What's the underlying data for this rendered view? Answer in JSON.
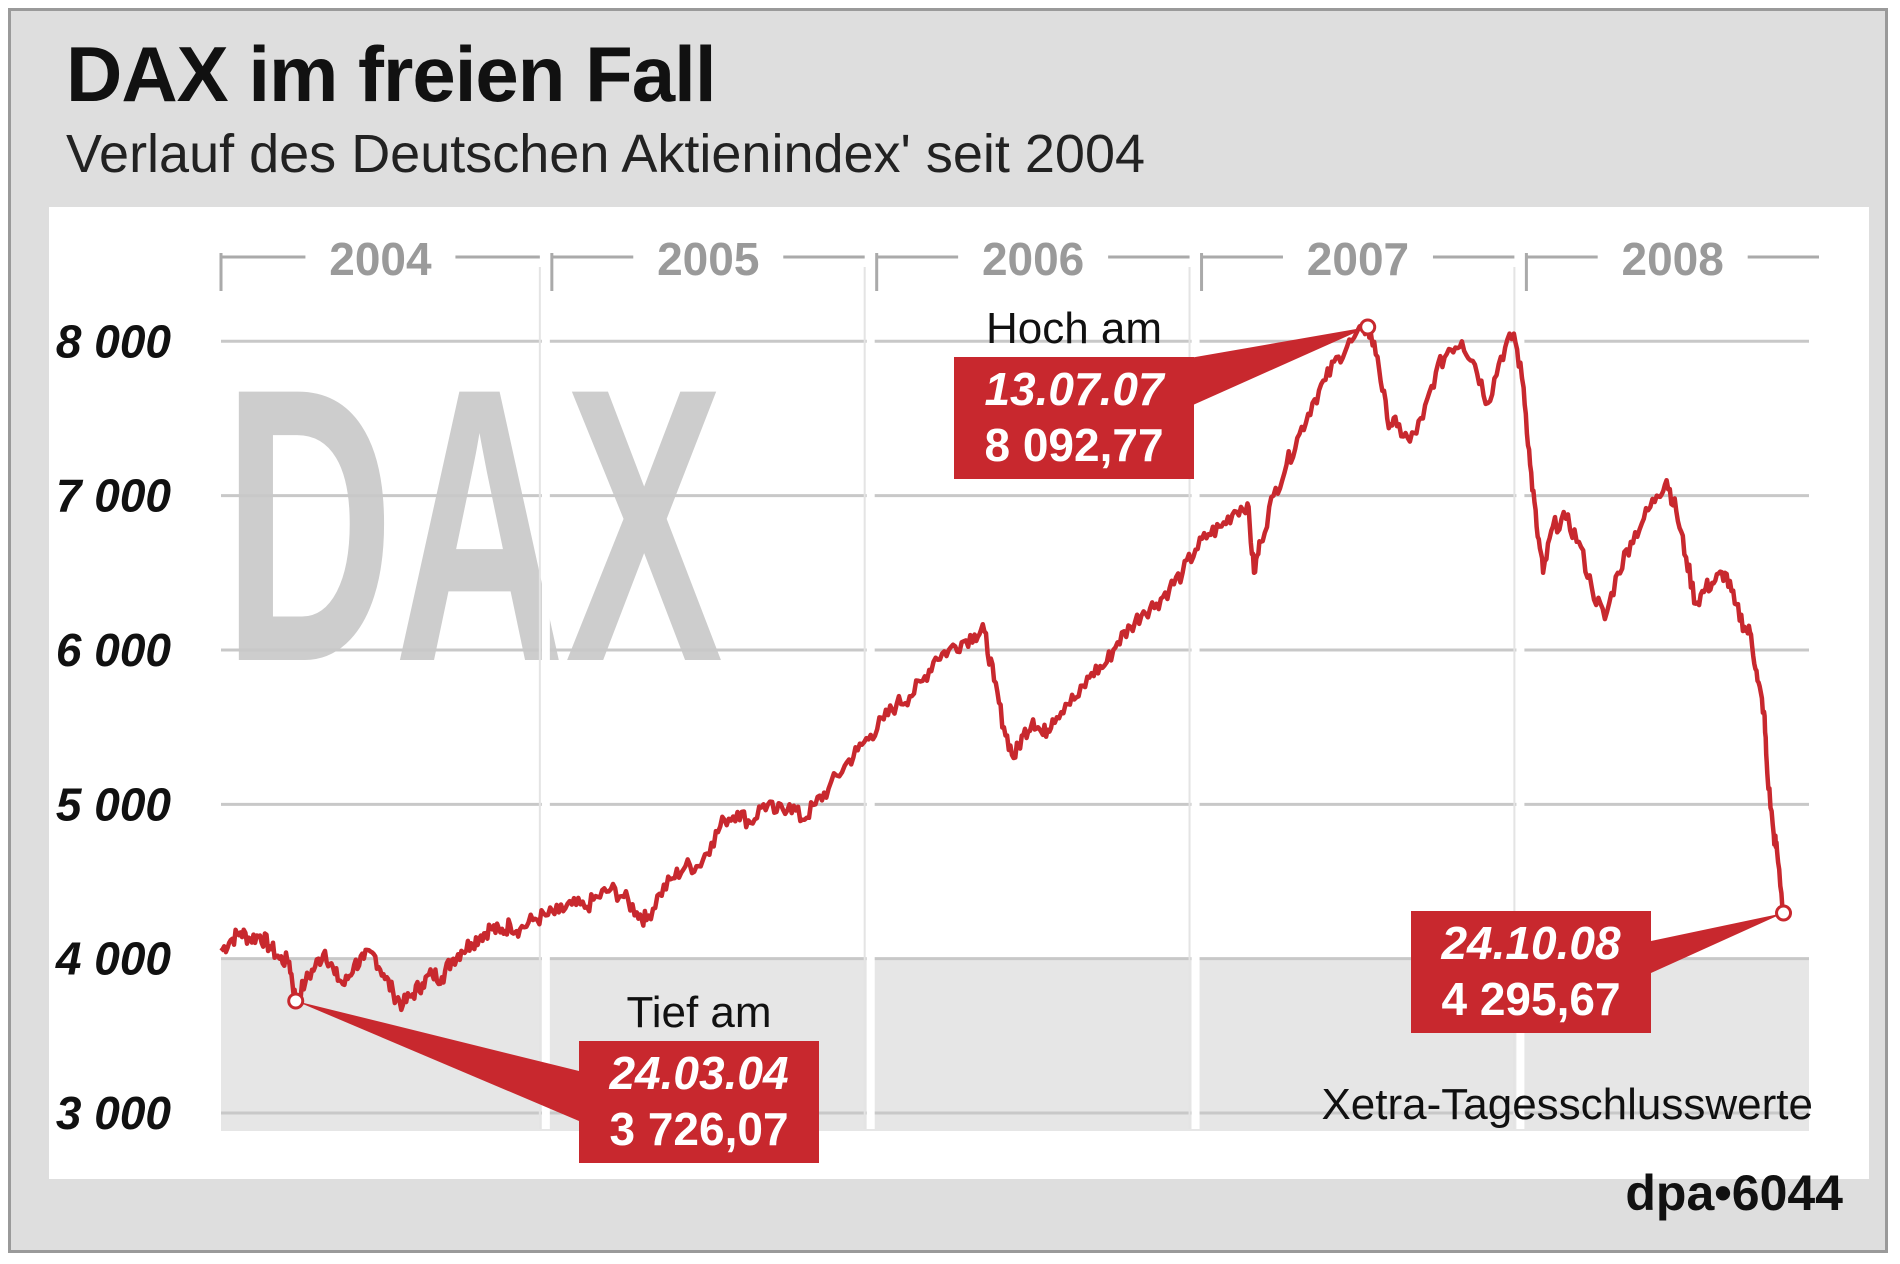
{
  "chart_data": {
    "type": "line",
    "title": "DAX im freien Fall",
    "subtitle": "Verlauf des Deutschen Aktienindex' seit 2004",
    "watermark": "DAX",
    "source_note": "Xetra-Tagesschlusswerte",
    "credit": "dpa•6044",
    "colors": {
      "line": "#c8282e",
      "label_box": "#c8282e",
      "grid": "#c8c8c8",
      "watermark": "#cdcdcd",
      "shade": "#e6e6e6"
    },
    "xlim": [
      2004.0,
      2008.95
    ],
    "ylim": [
      3000,
      8300
    ],
    "y_ticks": [
      3000,
      4000,
      5000,
      6000,
      7000,
      8000
    ],
    "y_tick_labels": [
      "3 000",
      "4 000",
      "5 000",
      "6 000",
      "7 000",
      "8 000"
    ],
    "year_labels": [
      "2004",
      "2005",
      "2006",
      "2007",
      "2008"
    ],
    "series": [
      {
        "values": [
          [
            2004.0,
            4050
          ],
          [
            2004.03,
            4120
          ],
          [
            2004.06,
            4170
          ],
          [
            2004.09,
            4130
          ],
          [
            2004.12,
            4150
          ],
          [
            2004.15,
            4080
          ],
          [
            2004.18,
            4000
          ],
          [
            2004.21,
            3980
          ],
          [
            2004.23,
            3726
          ],
          [
            2004.26,
            3850
          ],
          [
            2004.29,
            3950
          ],
          [
            2004.32,
            4050
          ],
          [
            2004.35,
            3900
          ],
          [
            2004.38,
            3830
          ],
          [
            2004.41,
            3960
          ],
          [
            2004.44,
            4000
          ],
          [
            2004.47,
            4030
          ],
          [
            2004.5,
            3900
          ],
          [
            2004.53,
            3780
          ],
          [
            2004.56,
            3700
          ],
          [
            2004.59,
            3770
          ],
          [
            2004.62,
            3840
          ],
          [
            2004.65,
            3900
          ],
          [
            2004.68,
            3880
          ],
          [
            2004.71,
            3990
          ],
          [
            2004.74,
            4050
          ],
          [
            2004.77,
            4100
          ],
          [
            2004.8,
            4150
          ],
          [
            2004.83,
            4200
          ],
          [
            2004.86,
            4170
          ],
          [
            2004.89,
            4220
          ],
          [
            2004.92,
            4190
          ],
          [
            2004.96,
            4250
          ],
          [
            2005.0,
            4280
          ],
          [
            2005.04,
            4300
          ],
          [
            2005.08,
            4350
          ],
          [
            2005.12,
            4330
          ],
          [
            2005.16,
            4400
          ],
          [
            2005.2,
            4450
          ],
          [
            2005.24,
            4400
          ],
          [
            2005.28,
            4300
          ],
          [
            2005.31,
            4250
          ],
          [
            2005.35,
            4420
          ],
          [
            2005.39,
            4520
          ],
          [
            2005.43,
            4600
          ],
          [
            2005.47,
            4600
          ],
          [
            2005.51,
            4750
          ],
          [
            2005.55,
            4900
          ],
          [
            2005.59,
            4950
          ],
          [
            2005.63,
            4880
          ],
          [
            2005.67,
            5000
          ],
          [
            2005.71,
            4950
          ],
          [
            2005.75,
            5000
          ],
          [
            2005.79,
            4900
          ],
          [
            2005.83,
            5000
          ],
          [
            2005.87,
            5100
          ],
          [
            2005.92,
            5250
          ],
          [
            2005.96,
            5350
          ],
          [
            2006.0,
            5450
          ],
          [
            2006.04,
            5550
          ],
          [
            2006.08,
            5650
          ],
          [
            2006.12,
            5700
          ],
          [
            2006.16,
            5800
          ],
          [
            2006.2,
            5950
          ],
          [
            2006.24,
            6000
          ],
          [
            2006.28,
            6050
          ],
          [
            2006.32,
            6100
          ],
          [
            2006.35,
            6120
          ],
          [
            2006.38,
            5800
          ],
          [
            2006.41,
            5500
          ],
          [
            2006.44,
            5300
          ],
          [
            2006.47,
            5450
          ],
          [
            2006.5,
            5550
          ],
          [
            2006.53,
            5450
          ],
          [
            2006.56,
            5550
          ],
          [
            2006.6,
            5650
          ],
          [
            2006.64,
            5700
          ],
          [
            2006.68,
            5850
          ],
          [
            2006.72,
            5900
          ],
          [
            2006.76,
            6050
          ],
          [
            2006.8,
            6150
          ],
          [
            2006.84,
            6250
          ],
          [
            2006.88,
            6300
          ],
          [
            2006.92,
            6400
          ],
          [
            2006.96,
            6500
          ],
          [
            2007.0,
            6650
          ],
          [
            2007.04,
            6750
          ],
          [
            2007.08,
            6800
          ],
          [
            2007.12,
            6900
          ],
          [
            2007.16,
            6950
          ],
          [
            2007.18,
            6500
          ],
          [
            2007.2,
            6700
          ],
          [
            2007.24,
            7000
          ],
          [
            2007.28,
            7200
          ],
          [
            2007.32,
            7400
          ],
          [
            2007.36,
            7600
          ],
          [
            2007.4,
            7750
          ],
          [
            2007.44,
            7900
          ],
          [
            2007.48,
            8000
          ],
          [
            2007.53,
            8092
          ],
          [
            2007.56,
            7900
          ],
          [
            2007.59,
            7500
          ],
          [
            2007.62,
            7450
          ],
          [
            2007.66,
            7350
          ],
          [
            2007.7,
            7500
          ],
          [
            2007.74,
            7800
          ],
          [
            2007.78,
            7950
          ],
          [
            2007.82,
            8000
          ],
          [
            2007.86,
            7850
          ],
          [
            2007.9,
            7600
          ],
          [
            2007.94,
            7900
          ],
          [
            2007.98,
            8050
          ],
          [
            2008.01,
            7700
          ],
          [
            2008.03,
            7200
          ],
          [
            2008.05,
            6800
          ],
          [
            2008.07,
            6500
          ],
          [
            2008.1,
            6800
          ],
          [
            2008.14,
            6850
          ],
          [
            2008.18,
            6700
          ],
          [
            2008.22,
            6400
          ],
          [
            2008.26,
            6200
          ],
          [
            2008.3,
            6500
          ],
          [
            2008.34,
            6700
          ],
          [
            2008.38,
            6850
          ],
          [
            2008.42,
            7000
          ],
          [
            2008.45,
            7100
          ],
          [
            2008.48,
            6900
          ],
          [
            2008.51,
            6600
          ],
          [
            2008.54,
            6300
          ],
          [
            2008.57,
            6400
          ],
          [
            2008.6,
            6450
          ],
          [
            2008.63,
            6500
          ],
          [
            2008.66,
            6300
          ],
          [
            2008.69,
            6150
          ],
          [
            2008.71,
            6100
          ],
          [
            2008.73,
            5800
          ],
          [
            2008.75,
            5600
          ],
          [
            2008.76,
            5200
          ],
          [
            2008.78,
            4800
          ],
          [
            2008.79,
            4700
          ],
          [
            2008.81,
            4296
          ]
        ]
      }
    ],
    "annotations": [
      {
        "id": "low",
        "label": "Tief am",
        "date": "24.03.04",
        "value": "3 726,07",
        "x": 2004.23,
        "y": 3726.07
      },
      {
        "id": "high",
        "label": "Hoch am",
        "date": "13.07.07",
        "value": "8 092,77",
        "x": 2007.53,
        "y": 8092.77
      },
      {
        "id": "last",
        "label": "",
        "date": "24.10.08",
        "value": "4 295,67",
        "x": 2008.81,
        "y": 4295.67
      }
    ],
    "grid": true
  }
}
